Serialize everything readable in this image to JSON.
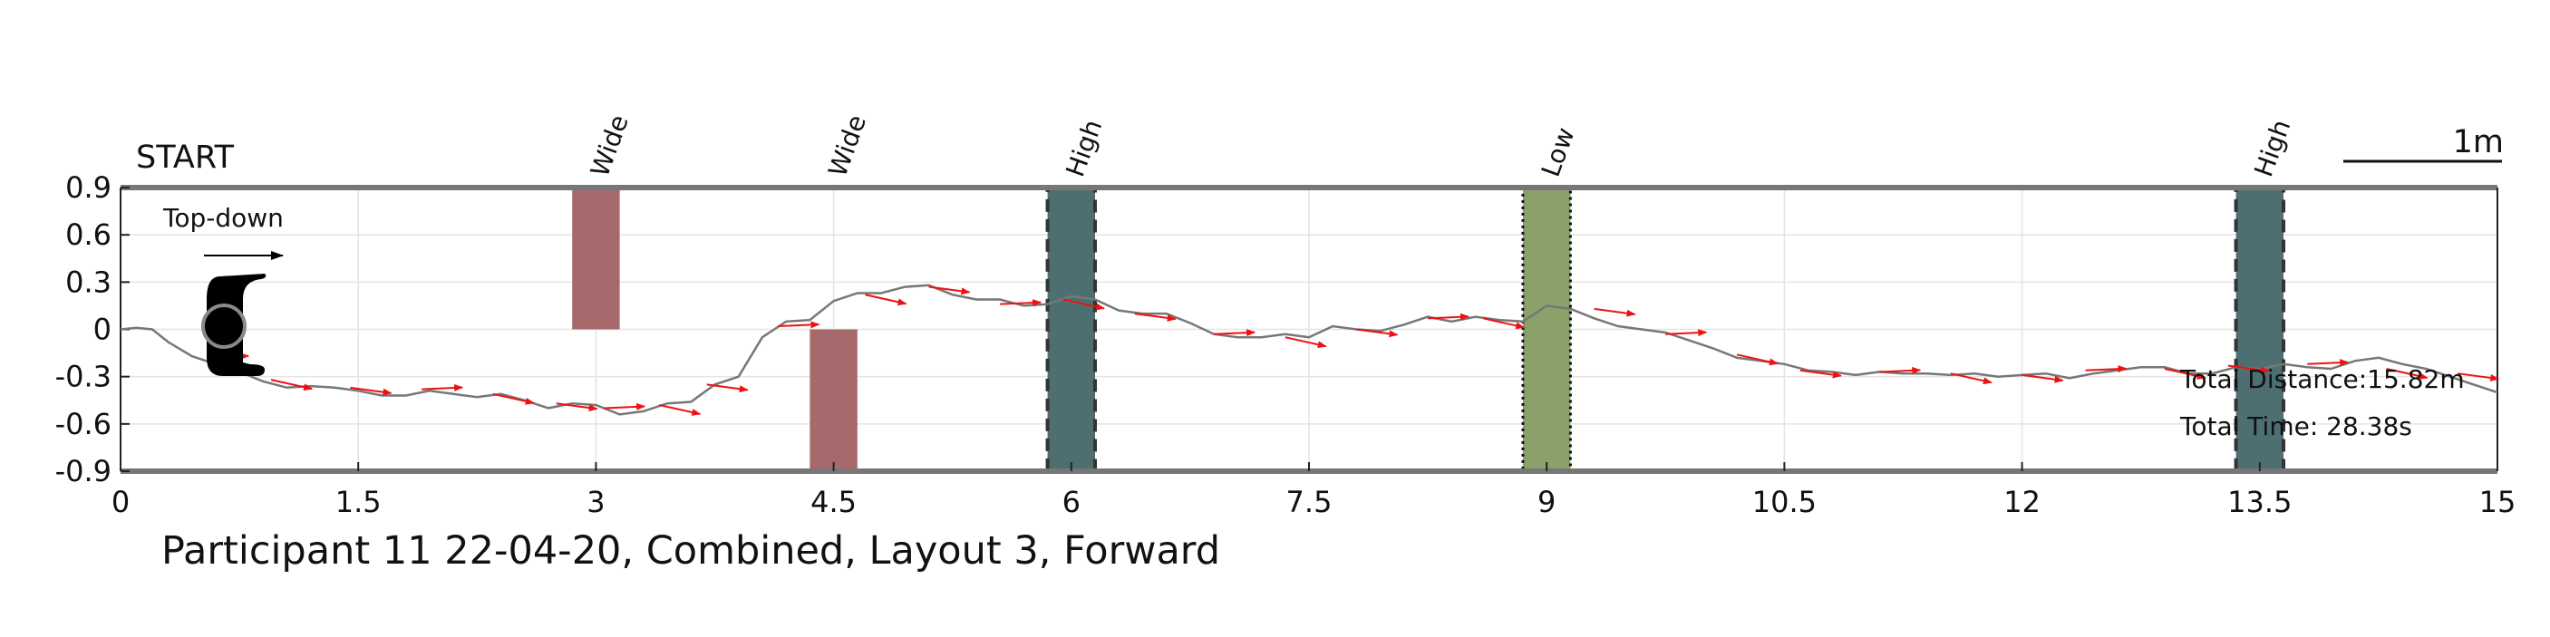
{
  "chart_data": {
    "type": "line",
    "title": "Participant 11 22-04-20, Combined, Layout 3, Forward",
    "xlim": [
      0,
      15
    ],
    "ylim": [
      -0.9,
      0.9
    ],
    "x_ticks": [
      0,
      1.5,
      3,
      4.5,
      6,
      7.5,
      9,
      10.5,
      12,
      13.5,
      15
    ],
    "x_tick_labels": [
      "0",
      "1.5",
      "3",
      "4.5",
      "6",
      "7.5",
      "9",
      "10.5",
      "12",
      "13.5",
      "15"
    ],
    "y_ticks": [
      0.9,
      0.6,
      0.3,
      0,
      -0.3,
      -0.6,
      -0.9
    ],
    "y_tick_labels": [
      "0.9",
      "0.6",
      "0.3",
      "0",
      "-0.3",
      "-0.6",
      "-0.9"
    ],
    "grid": true,
    "start_label": "START",
    "topdown_label": "Top-down",
    "scale_label": "1m",
    "obstacles": [
      {
        "label": "Wide",
        "x0": 2.85,
        "x1": 3.15,
        "y0": 0,
        "y1": 0.9,
        "color": "#a66a6d",
        "border": "none"
      },
      {
        "label": "Wide",
        "x0": 4.35,
        "x1": 4.65,
        "y0": -0.9,
        "y1": 0,
        "color": "#a66a6d",
        "border": "none"
      },
      {
        "label": "High",
        "x0": 5.85,
        "x1": 6.15,
        "y0": -0.9,
        "y1": 0.9,
        "color": "#4d6f72",
        "border": "dashed"
      },
      {
        "label": "Low",
        "x0": 8.85,
        "x1": 9.15,
        "y0": -0.9,
        "y1": 0.9,
        "color": "#8aa16a",
        "border": "dotted"
      },
      {
        "label": "High",
        "x0": 13.35,
        "x1": 13.65,
        "y0": -0.9,
        "y1": 0.9,
        "color": "#4d6f72",
        "border": "dashed"
      }
    ],
    "series": [
      {
        "x": [
          0,
          0.1,
          0.2,
          0.3,
          0.45,
          0.6,
          0.75,
          0.9,
          1.05,
          1.2,
          1.35,
          1.5,
          1.65,
          1.8,
          1.95,
          2.1,
          2.25,
          2.4,
          2.55,
          2.7,
          2.85,
          3.0,
          3.15,
          3.3,
          3.45,
          3.6,
          3.75,
          3.9,
          4.05,
          4.2,
          4.35,
          4.5,
          4.65,
          4.8,
          4.95,
          5.1,
          5.25,
          5.4,
          5.55,
          5.7,
          5.85,
          6.0,
          6.15,
          6.3,
          6.45,
          6.6,
          6.75,
          6.9,
          7.05,
          7.2,
          7.35,
          7.5,
          7.65,
          7.8,
          7.95,
          8.1,
          8.25,
          8.4,
          8.55,
          8.7,
          8.85,
          9.0,
          9.15,
          9.3,
          9.45,
          9.6,
          9.75,
          9.9,
          10.05,
          10.2,
          10.35,
          10.5,
          10.65,
          10.8,
          10.95,
          11.1,
          11.25,
          11.4,
          11.55,
          11.7,
          11.85,
          12.0,
          12.15,
          12.3,
          12.45,
          12.6,
          12.75,
          12.9,
          13.05,
          13.2,
          13.35,
          13.5,
          13.65,
          13.8,
          13.95,
          14.1,
          14.25,
          14.4,
          14.55,
          14.7,
          14.85,
          15.0
        ],
        "y": [
          0,
          0.01,
          0,
          -0.08,
          -0.17,
          -0.22,
          -0.27,
          -0.33,
          -0.37,
          -0.36,
          -0.37,
          -0.39,
          -0.42,
          -0.42,
          -0.39,
          -0.41,
          -0.43,
          -0.41,
          -0.45,
          -0.5,
          -0.47,
          -0.48,
          -0.54,
          -0.52,
          -0.47,
          -0.46,
          -0.35,
          -0.3,
          -0.05,
          0.05,
          0.06,
          0.18,
          0.23,
          0.23,
          0.27,
          0.28,
          0.22,
          0.19,
          0.19,
          0.15,
          0.16,
          0.21,
          0.19,
          0.12,
          0.1,
          0.1,
          0.04,
          -0.03,
          -0.05,
          -0.05,
          -0.03,
          -0.05,
          0.02,
          0,
          -0.01,
          0.03,
          0.08,
          0.05,
          0.08,
          0.06,
          0.05,
          0.15,
          0.13,
          0.07,
          0.02,
          0,
          -0.02,
          -0.07,
          -0.12,
          -0.18,
          -0.2,
          -0.22,
          -0.26,
          -0.27,
          -0.29,
          -0.27,
          -0.28,
          -0.28,
          -0.29,
          -0.28,
          -0.3,
          -0.29,
          -0.28,
          -0.31,
          -0.28,
          -0.26,
          -0.24,
          -0.24,
          -0.28,
          -0.28,
          -0.24,
          -0.25,
          -0.22,
          -0.24,
          -0.25,
          -0.2,
          -0.18,
          -0.22,
          -0.25,
          -0.3,
          -0.35,
          -0.4
        ],
        "color": "#777777"
      }
    ],
    "arrows": [
      [
        0.55,
        -0.18
      ],
      [
        0.95,
        -0.32
      ],
      [
        1.45,
        -0.37
      ],
      [
        1.9,
        -0.38
      ],
      [
        2.35,
        -0.41
      ],
      [
        2.75,
        -0.47
      ],
      [
        3.05,
        -0.5
      ],
      [
        3.4,
        -0.48
      ],
      [
        3.7,
        -0.35
      ],
      [
        4.15,
        0.02
      ],
      [
        4.7,
        0.22
      ],
      [
        5.1,
        0.27
      ],
      [
        5.55,
        0.16
      ],
      [
        5.95,
        0.19
      ],
      [
        6.4,
        0.1
      ],
      [
        6.9,
        -0.03
      ],
      [
        7.35,
        -0.05
      ],
      [
        7.8,
        0
      ],
      [
        8.25,
        0.07
      ],
      [
        8.6,
        0.07
      ],
      [
        9.3,
        0.13
      ],
      [
        9.75,
        -0.03
      ],
      [
        10.2,
        -0.16
      ],
      [
        10.6,
        -0.26
      ],
      [
        11.1,
        -0.27
      ],
      [
        11.55,
        -0.28
      ],
      [
        12.0,
        -0.29
      ],
      [
        12.4,
        -0.26
      ],
      [
        12.9,
        -0.25
      ],
      [
        13.3,
        -0.23
      ],
      [
        13.8,
        -0.22
      ],
      [
        14.3,
        -0.25
      ],
      [
        14.75,
        -0.28
      ]
    ],
    "annotations": {
      "total_distance": "Total Distance:15.82m",
      "total_time": "Total Time: 28.38s"
    },
    "colors": {
      "path": "#777777",
      "arrow": "#ee1111",
      "axis": "#777777",
      "grid": "#e4e4e4"
    }
  }
}
